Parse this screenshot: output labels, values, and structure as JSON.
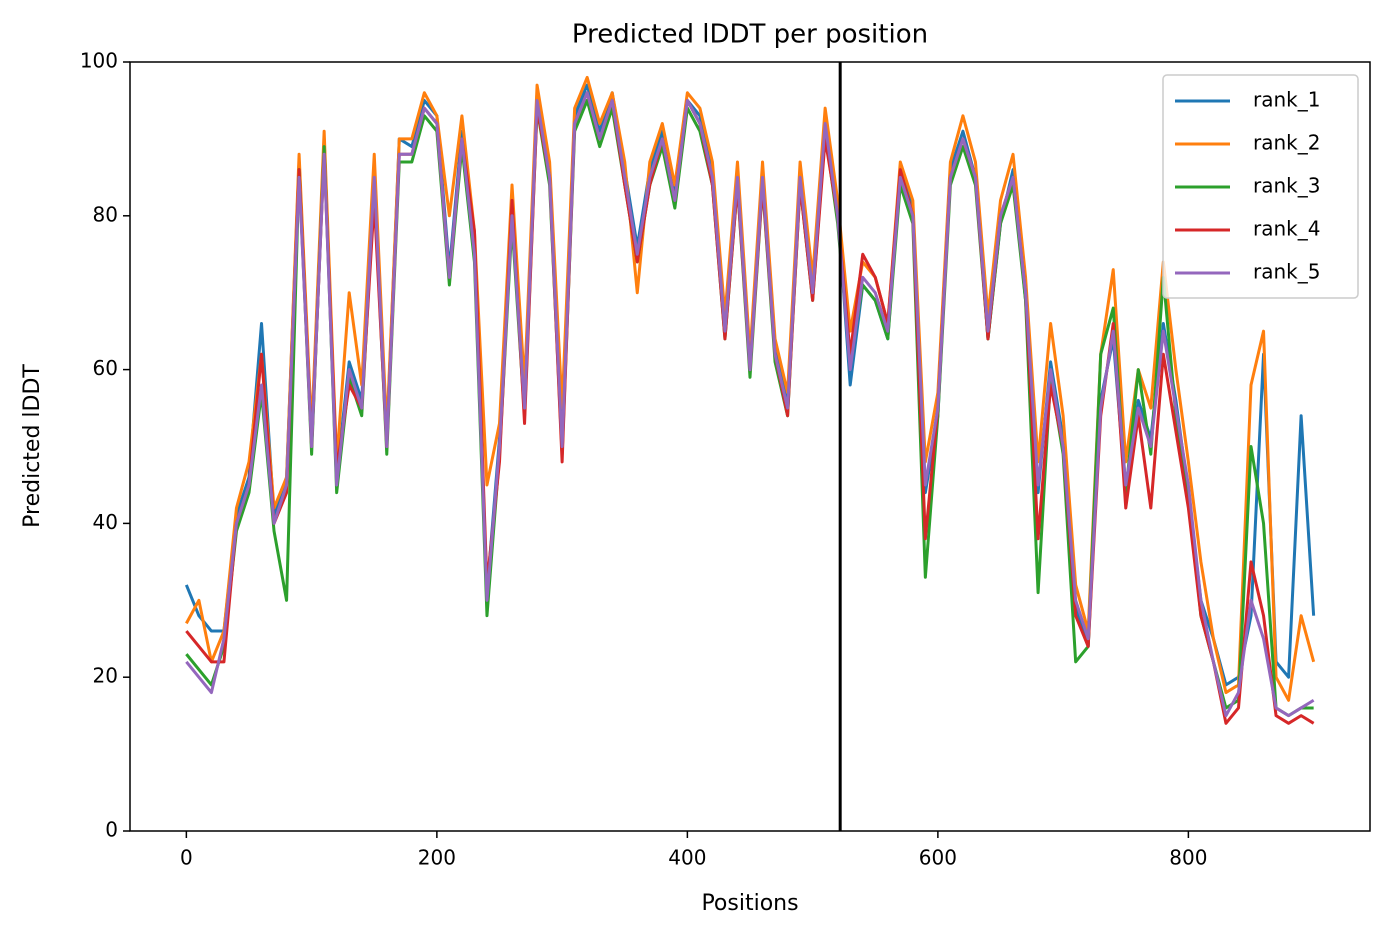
{
  "chart_data": {
    "type": "line",
    "title": "Predicted lDDT per position",
    "xlabel": "Positions",
    "ylabel": "Predicted lDDT",
    "xlim": [
      -45,
      945
    ],
    "ylim": [
      0,
      100
    ],
    "xticks": [
      0,
      200,
      400,
      600,
      800
    ],
    "yticks": [
      0,
      20,
      40,
      60,
      80,
      100
    ],
    "legend": "upper right",
    "vline": 522,
    "x": [
      0,
      10,
      20,
      30,
      40,
      50,
      60,
      70,
      80,
      90,
      100,
      110,
      120,
      130,
      140,
      150,
      160,
      170,
      180,
      190,
      200,
      210,
      220,
      230,
      240,
      250,
      260,
      270,
      280,
      290,
      300,
      310,
      320,
      330,
      340,
      350,
      360,
      370,
      380,
      390,
      400,
      410,
      420,
      430,
      440,
      450,
      460,
      470,
      480,
      490,
      500,
      510,
      520,
      530,
      540,
      550,
      560,
      570,
      580,
      590,
      600,
      610,
      620,
      630,
      640,
      650,
      660,
      670,
      680,
      690,
      700,
      710,
      720,
      730,
      740,
      750,
      760,
      770,
      780,
      790,
      800,
      810,
      820,
      830,
      840,
      850,
      860,
      870,
      880,
      890,
      900
    ],
    "series": [
      {
        "name": "rank_1",
        "color": "#1f77b4",
        "values": [
          32,
          28,
          26,
          26,
          41,
          46,
          66,
          41,
          46,
          87,
          50,
          90,
          46,
          61,
          56,
          86,
          51,
          90,
          89,
          95,
          93,
          73,
          91,
          76,
          31,
          51,
          81,
          56,
          96,
          86,
          51,
          93,
          97,
          91,
          96,
          86,
          76,
          86,
          91,
          83,
          95,
          93,
          86,
          66,
          86,
          61,
          86,
          63,
          56,
          86,
          71,
          93,
          81,
          58,
          71,
          69,
          64,
          86,
          81,
          44,
          54,
          86,
          91,
          85,
          64,
          79,
          86,
          69,
          44,
          61,
          51,
          29,
          24,
          56,
          64,
          44,
          56,
          51,
          66,
          56,
          44,
          30,
          25,
          19,
          20,
          28,
          62,
          22,
          20,
          54,
          28
        ]
      },
      {
        "name": "rank_2",
        "color": "#ff7f0e",
        "values": [
          27,
          30,
          22,
          26,
          42,
          48,
          62,
          42,
          46,
          88,
          52,
          91,
          48,
          70,
          58,
          88,
          52,
          90,
          90,
          96,
          93,
          80,
          93,
          78,
          45,
          53,
          84,
          58,
          97,
          87,
          55,
          94,
          98,
          92,
          96,
          87,
          70,
          87,
          92,
          84,
          96,
          94,
          87,
          67,
          87,
          62,
          87,
          64,
          57,
          87,
          72,
          94,
          82,
          65,
          74,
          72,
          66,
          87,
          82,
          48,
          57,
          87,
          93,
          87,
          67,
          82,
          88,
          72,
          48,
          66,
          54,
          32,
          26,
          62,
          73,
          48,
          60,
          55,
          74,
          60,
          48,
          35,
          25,
          18,
          19,
          58,
          65,
          20,
          17,
          28,
          22
        ]
      },
      {
        "name": "rank_3",
        "color": "#2ca02c",
        "values": [
          23,
          21,
          19,
          24,
          39,
          44,
          57,
          39,
          30,
          86,
          49,
          89,
          44,
          59,
          54,
          84,
          49,
          87,
          87,
          93,
          91,
          71,
          89,
          74,
          28,
          49,
          79,
          54,
          94,
          84,
          49,
          91,
          95,
          89,
          94,
          84,
          74,
          84,
          89,
          81,
          94,
          91,
          84,
          64,
          84,
          59,
          84,
          61,
          54,
          84,
          69,
          91,
          79,
          61,
          71,
          69,
          64,
          84,
          79,
          33,
          54,
          84,
          89,
          84,
          64,
          79,
          84,
          69,
          31,
          59,
          49,
          22,
          24,
          62,
          68,
          44,
          60,
          49,
          72,
          54,
          44,
          28,
          22,
          16,
          17,
          50,
          40,
          16,
          15,
          16,
          16
        ]
      },
      {
        "name": "rank_4",
        "color": "#d62728",
        "values": [
          26,
          24,
          22,
          22,
          40,
          45,
          62,
          40,
          44,
          86,
          50,
          88,
          47,
          58,
          55,
          82,
          50,
          88,
          88,
          94,
          92,
          72,
          90,
          78,
          32,
          48,
          82,
          53,
          94,
          85,
          48,
          92,
          96,
          90,
          95,
          84,
          74,
          84,
          90,
          82,
          95,
          92,
          84,
          64,
          84,
          60,
          84,
          62,
          54,
          84,
          69,
          90,
          80,
          62,
          75,
          72,
          66,
          86,
          80,
          38,
          55,
          85,
          90,
          85,
          64,
          80,
          85,
          70,
          38,
          58,
          50,
          28,
          24,
          54,
          66,
          42,
          54,
          42,
          62,
          52,
          42,
          28,
          22,
          14,
          16,
          35,
          28,
          15,
          14,
          15,
          14
        ]
      },
      {
        "name": "rank_5",
        "color": "#9467bd",
        "values": [
          22,
          20,
          18,
          25,
          40,
          45,
          58,
          40,
          45,
          85,
          50,
          88,
          45,
          60,
          55,
          85,
          50,
          88,
          88,
          94,
          92,
          72,
          90,
          75,
          30,
          50,
          80,
          55,
          95,
          85,
          50,
          92,
          96,
          90,
          95,
          85,
          75,
          85,
          90,
          82,
          95,
          92,
          85,
          65,
          85,
          60,
          85,
          62,
          55,
          85,
          70,
          92,
          80,
          60,
          72,
          70,
          65,
          85,
          80,
          45,
          55,
          85,
          90,
          85,
          65,
          80,
          85,
          70,
          45,
          60,
          50,
          30,
          25,
          55,
          65,
          45,
          55,
          50,
          65,
          55,
          45,
          30,
          22,
          15,
          18,
          30,
          25,
          16,
          15,
          16,
          17
        ]
      }
    ]
  }
}
